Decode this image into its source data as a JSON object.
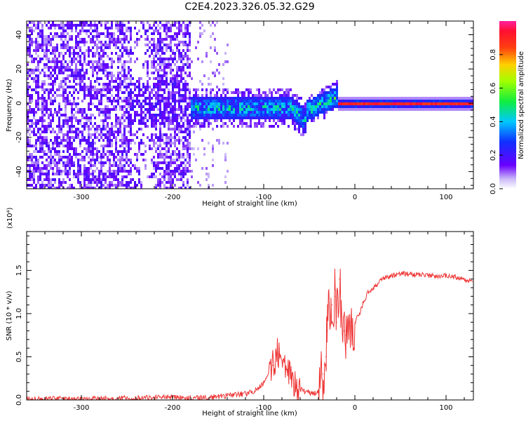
{
  "figure": {
    "title": "C2E4.2023.326.05.32.G29"
  },
  "chart_data": [
    {
      "type": "heatmap",
      "title": "C2E4.2023.326.05.32.G29",
      "xlabel": "Height of straight line (km)",
      "ylabel": "Frequency (Hz)",
      "xlim": [
        -360,
        130
      ],
      "ylim": [
        -50,
        48
      ],
      "x_ticks": [
        -300,
        -200,
        -100,
        0,
        100
      ],
      "y_ticks": [
        -40,
        -20,
        0,
        20,
        40
      ],
      "colorbar": {
        "label": "Normalized spectral amplitude",
        "range": [
          0,
          1
        ],
        "ticks": [
          0.0,
          0.2,
          0.4,
          0.6,
          0.8
        ],
        "colormap": "rainbow (purple-blue-cyan-green-yellow-red-magenta)"
      },
      "regions": [
        {
          "x_range": [
            -360,
            -180
          ],
          "freq_spread": [
            -50,
            48
          ],
          "amplitude": "0.1-0.3 (diffuse purple noise)"
        },
        {
          "x_range": [
            -180,
            -55
          ],
          "freq_spread": [
            -10,
            6
          ],
          "amplitude": "0.2-0.55 (blue/cyan/green band)"
        },
        {
          "x_range": [
            -55,
            -20
          ],
          "freq_spread": [
            -12,
            6
          ],
          "amplitude": "0.3-0.6 (band tilting upward)"
        },
        {
          "x_range": [
            -20,
            130
          ],
          "freq_spread": [
            -2,
            2
          ],
          "amplitude": "0.8-1.0 (narrow red line at 0 Hz)"
        }
      ]
    },
    {
      "type": "line",
      "xlabel": "Height of straight line (km)",
      "ylabel": "SNR (10 * v/v)",
      "y_multiplier": "(x10⁴)",
      "xlim": [
        -360,
        130
      ],
      "ylim": [
        0,
        1.95
      ],
      "x_ticks": [
        -300,
        -200,
        -100,
        0,
        100
      ],
      "y_ticks": [
        0.0,
        0.5,
        1.0,
        1.5
      ],
      "color": "#ee3333",
      "series": [
        {
          "x": [
            -360,
            -340,
            -320,
            -300,
            -280,
            -260,
            -240,
            -220,
            -210,
            -200,
            -180,
            -160,
            -140,
            -120,
            -110,
            -100,
            -90,
            -85,
            -80,
            -75,
            -70,
            -65,
            -60,
            -55,
            -50,
            -45,
            -40,
            -35,
            -32,
            -30,
            -28,
            -25,
            -22,
            -20,
            -17,
            -15,
            -12,
            -10,
            -8,
            -5,
            0,
            5,
            10,
            15,
            20,
            25,
            30,
            40,
            50,
            60,
            70,
            80,
            90,
            100,
            110,
            120,
            130
          ],
          "y": [
            0.01,
            0.01,
            0.015,
            0.02,
            0.015,
            0.02,
            0.02,
            0.03,
            0.04,
            0.03,
            0.02,
            0.03,
            0.05,
            0.07,
            0.1,
            0.2,
            0.4,
            0.55,
            0.45,
            0.35,
            0.25,
            0.15,
            0.12,
            0.1,
            0.08,
            0.07,
            0.1,
            0.3,
            0.5,
            0.8,
            1.0,
            1.1,
            1.2,
            0.9,
            1.4,
            1.0,
            0.8,
            0.75,
            0.8,
            0.85,
            0.9,
            1.0,
            1.15,
            1.25,
            1.3,
            1.35,
            1.4,
            1.44,
            1.46,
            1.46,
            1.45,
            1.44,
            1.43,
            1.44,
            1.42,
            1.4,
            1.37
          ]
        }
      ]
    }
  ]
}
